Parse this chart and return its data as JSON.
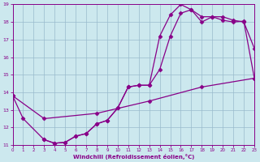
{
  "xlabel": "Windchill (Refroidissement éolien,°C)",
  "xlim": [
    0,
    23
  ],
  "ylim": [
    11,
    19
  ],
  "xticks": [
    0,
    1,
    2,
    3,
    4,
    5,
    6,
    7,
    8,
    9,
    10,
    11,
    12,
    13,
    14,
    15,
    16,
    17,
    18,
    19,
    20,
    21,
    22,
    23
  ],
  "yticks": [
    11,
    12,
    13,
    14,
    15,
    16,
    17,
    18,
    19
  ],
  "bg_color": "#cce8ee",
  "line_color": "#880088",
  "grid_color": "#99bbcc",
  "line1_x": [
    0,
    1,
    3,
    4,
    5,
    6,
    7,
    8,
    9,
    10,
    11,
    12,
    13,
    14,
    15,
    16,
    17,
    18,
    19,
    20,
    21,
    22,
    23
  ],
  "line1_y": [
    13.8,
    12.5,
    11.3,
    11.1,
    11.15,
    11.5,
    11.65,
    12.2,
    12.4,
    13.1,
    14.3,
    14.4,
    14.4,
    17.2,
    18.4,
    19.0,
    18.7,
    18.0,
    18.3,
    18.3,
    18.1,
    18.0,
    16.5
  ],
  "line2_x": [
    3,
    4,
    5,
    6,
    7,
    8,
    9,
    10,
    11,
    12,
    13,
    14,
    15,
    16,
    17,
    18,
    19,
    20,
    21,
    22,
    23
  ],
  "line2_y": [
    11.3,
    11.1,
    11.15,
    11.5,
    11.65,
    12.2,
    12.4,
    13.1,
    14.3,
    14.4,
    14.4,
    15.3,
    17.2,
    18.5,
    18.7,
    18.3,
    18.3,
    18.1,
    18.0,
    18.05,
    14.8
  ],
  "line3_x": [
    0,
    3,
    8,
    13,
    18,
    23
  ],
  "line3_y": [
    13.8,
    12.5,
    12.8,
    13.5,
    14.3,
    14.8
  ],
  "marker": "D",
  "markersize": 2.5,
  "linewidth": 0.9
}
